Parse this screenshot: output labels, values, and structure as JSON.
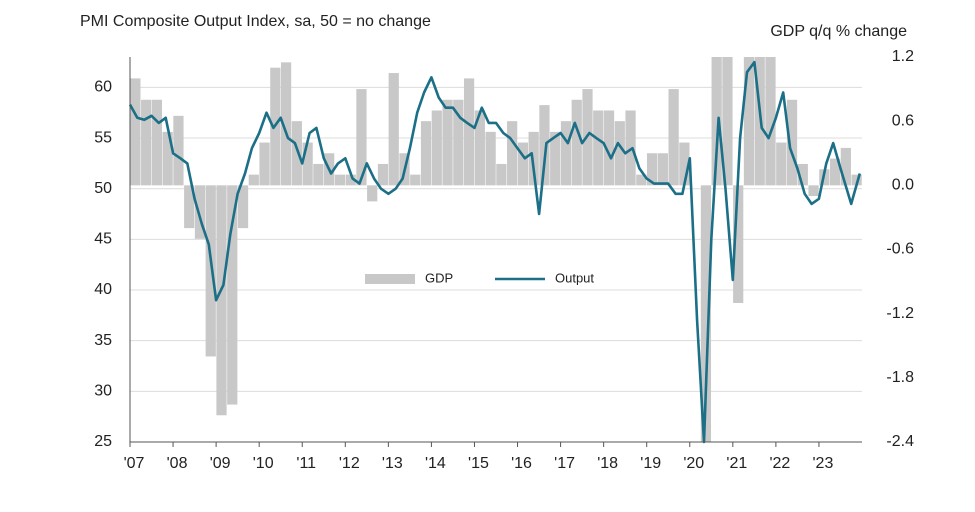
{
  "chart_data": {
    "type": "combo",
    "title": "PMI Composite Output Index, sa, 50 = no change",
    "y2_title": "GDP q/q % change",
    "xlim": [
      2007,
      2024
    ],
    "xticks": [
      {
        "value": 2007,
        "label": "'07"
      },
      {
        "value": 2008,
        "label": "'08"
      },
      {
        "value": 2009,
        "label": "'09"
      },
      {
        "value": 2010,
        "label": "'10"
      },
      {
        "value": 2011,
        "label": "'11"
      },
      {
        "value": 2012,
        "label": "'12"
      },
      {
        "value": 2013,
        "label": "'13"
      },
      {
        "value": 2014,
        "label": "'14"
      },
      {
        "value": 2015,
        "label": "'15"
      },
      {
        "value": 2016,
        "label": "'16"
      },
      {
        "value": 2017,
        "label": "'17"
      },
      {
        "value": 2018,
        "label": "'18"
      },
      {
        "value": 2019,
        "label": "'19"
      },
      {
        "value": 2020,
        "label": "'20"
      },
      {
        "value": 2021,
        "label": "'21"
      },
      {
        "value": 2022,
        "label": "'22"
      },
      {
        "value": 2023,
        "label": "'23"
      }
    ],
    "ylim": [
      25,
      63
    ],
    "yticks": [
      25,
      30,
      35,
      40,
      45,
      50,
      55,
      60
    ],
    "y2lim": [
      -2.4,
      1.2
    ],
    "y2ticks": [
      -2.4,
      -1.8,
      -1.2,
      -0.6,
      {
        "value": 0,
        "label": "0.0"
      },
      0.6,
      1.2
    ],
    "grid": true,
    "series": [
      {
        "name": "GDP",
        "type": "bar",
        "axis": "y2",
        "color": "#c8c8c8",
        "x": [
          2007.125,
          2007.375,
          2007.625,
          2007.875,
          2008.125,
          2008.375,
          2008.625,
          2008.875,
          2009.125,
          2009.375,
          2009.625,
          2009.875,
          2010.125,
          2010.375,
          2010.625,
          2010.875,
          2011.125,
          2011.375,
          2011.625,
          2011.875,
          2012.125,
          2012.375,
          2012.625,
          2012.875,
          2013.125,
          2013.375,
          2013.625,
          2013.875,
          2014.125,
          2014.375,
          2014.625,
          2014.875,
          2015.125,
          2015.375,
          2015.625,
          2015.875,
          2016.125,
          2016.375,
          2016.625,
          2016.875,
          2017.125,
          2017.375,
          2017.625,
          2017.875,
          2018.125,
          2018.375,
          2018.625,
          2018.875,
          2019.125,
          2019.375,
          2019.625,
          2019.875,
          2020.125,
          2020.375,
          2020.625,
          2020.875,
          2021.125,
          2021.375,
          2021.625,
          2021.875,
          2022.125,
          2022.375,
          2022.625,
          2022.875,
          2023.125,
          2023.375,
          2023.625,
          2023.875
        ],
        "values": [
          1.0,
          0.8,
          0.8,
          0.5,
          0.65,
          -0.4,
          -0.5,
          -1.6,
          -2.15,
          -2.05,
          -0.4,
          0.1,
          0.4,
          1.1,
          1.15,
          0.6,
          0.4,
          0.2,
          0.3,
          0.1,
          0.1,
          0.9,
          -0.15,
          0.2,
          1.05,
          0.3,
          0.1,
          0.6,
          0.7,
          0.8,
          0.8,
          1.0,
          0.7,
          0.5,
          0.2,
          0.6,
          0.4,
          0.5,
          0.75,
          0.5,
          0.6,
          0.8,
          0.9,
          0.7,
          0.7,
          0.6,
          0.7,
          0.1,
          0.3,
          0.3,
          0.9,
          0.4,
          0.0,
          -2.4,
          1.2,
          1.2,
          -1.1,
          1.2,
          1.2,
          1.2,
          0.4,
          0.8,
          0.2,
          -0.1,
          0.15,
          0.25,
          0.35,
          0.1
        ]
      },
      {
        "name": "Output",
        "type": "line",
        "axis": "y",
        "color": "#1b6f87",
        "x": [
          2007.0,
          2007.17,
          2007.33,
          2007.5,
          2007.67,
          2007.83,
          2008.0,
          2008.17,
          2008.33,
          2008.5,
          2008.67,
          2008.83,
          2009.0,
          2009.17,
          2009.33,
          2009.5,
          2009.67,
          2009.83,
          2010.0,
          2010.17,
          2010.33,
          2010.5,
          2010.67,
          2010.83,
          2011.0,
          2011.17,
          2011.33,
          2011.5,
          2011.67,
          2011.83,
          2012.0,
          2012.17,
          2012.33,
          2012.5,
          2012.67,
          2012.83,
          2013.0,
          2013.17,
          2013.33,
          2013.5,
          2013.67,
          2013.83,
          2014.0,
          2014.17,
          2014.33,
          2014.5,
          2014.67,
          2014.83,
          2015.0,
          2015.17,
          2015.33,
          2015.5,
          2015.67,
          2015.83,
          2016.0,
          2016.17,
          2016.33,
          2016.5,
          2016.67,
          2016.83,
          2017.0,
          2017.17,
          2017.33,
          2017.5,
          2017.67,
          2017.83,
          2018.0,
          2018.17,
          2018.33,
          2018.5,
          2018.67,
          2018.83,
          2019.0,
          2019.17,
          2019.33,
          2019.5,
          2019.67,
          2019.83,
          2020.0,
          2020.17,
          2020.33,
          2020.5,
          2020.67,
          2020.83,
          2021.0,
          2021.17,
          2021.33,
          2021.5,
          2021.67,
          2021.83,
          2022.0,
          2022.17,
          2022.33,
          2022.5,
          2022.67,
          2022.83,
          2023.0,
          2023.17,
          2023.33,
          2023.5,
          2023.75,
          2023.95
        ],
        "values": [
          58.3,
          57.0,
          56.8,
          57.2,
          56.5,
          57.0,
          53.5,
          53.0,
          52.5,
          49.0,
          46.5,
          44.5,
          39.0,
          40.5,
          45.5,
          49.5,
          51.5,
          54.0,
          55.5,
          57.5,
          56.0,
          57.0,
          55.0,
          54.5,
          52.5,
          55.5,
          56.0,
          53.0,
          51.5,
          52.5,
          53.0,
          51.0,
          50.5,
          52.5,
          51.0,
          50.0,
          49.5,
          50.0,
          51.0,
          54.0,
          57.5,
          59.5,
          61.0,
          59.0,
          58.0,
          58.0,
          57.0,
          56.5,
          56.0,
          58.0,
          56.5,
          56.5,
          55.5,
          55.0,
          54.0,
          53.0,
          53.5,
          47.5,
          54.5,
          55.0,
          55.5,
          54.5,
          56.5,
          54.5,
          55.5,
          55.0,
          54.5,
          53.0,
          54.5,
          53.5,
          54.0,
          52.0,
          51.0,
          50.5,
          50.5,
          50.5,
          49.5,
          49.5,
          53.0,
          37.0,
          25.0,
          45.0,
          57.0,
          50.0,
          41.0,
          55.0,
          61.5,
          62.5,
          56.0,
          55.0,
          57.0,
          59.5,
          54.0,
          52.0,
          49.5,
          48.5,
          49.0,
          52.5,
          54.5,
          52.0,
          48.5,
          51.5
        ]
      }
    ],
    "legend": "center"
  }
}
